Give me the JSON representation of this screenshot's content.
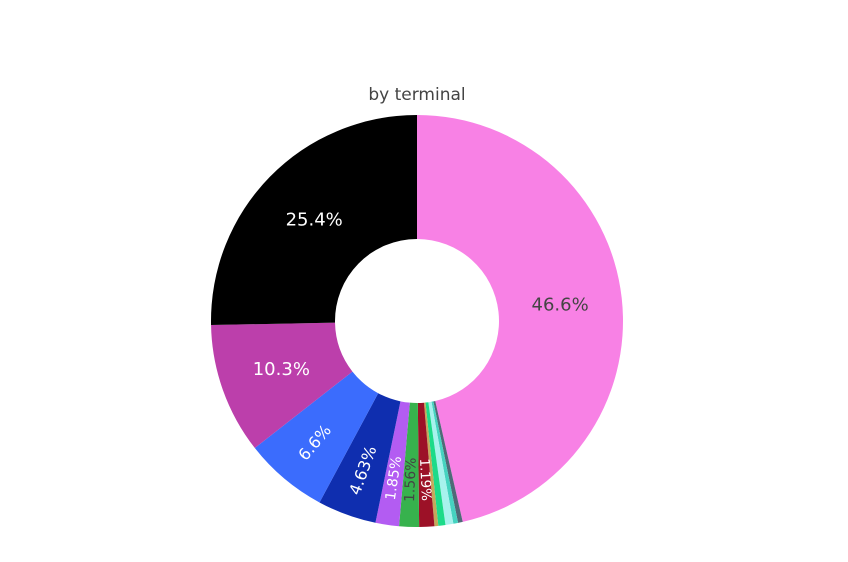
{
  "chart_data": {
    "type": "pie",
    "hole": true,
    "title": "by terminal",
    "slices": [
      {
        "label": "46.6%",
        "value": 46.6,
        "color": "#f881e5",
        "text_color": "#444444",
        "show_label": true
      },
      {
        "label": "0.37%",
        "value": 0.37,
        "color": "#4f6a78",
        "text_color": "#444444",
        "show_label": false
      },
      {
        "label": "0.37%",
        "value": 0.37,
        "color": "#45d3c0",
        "text_color": "#444444",
        "show_label": false
      },
      {
        "label": "0.62%",
        "value": 0.62,
        "color": "#a7f2ed",
        "text_color": "#444444",
        "show_label": false
      },
      {
        "label": "0.56%",
        "value": 0.56,
        "color": "#1cdb89",
        "text_color": "#444444",
        "show_label": false
      },
      {
        "label": "0.3%",
        "value": 0.3,
        "color": "#c4a95b",
        "text_color": "#444444",
        "show_label": false
      },
      {
        "label": "1.19%",
        "value": 1.19,
        "color": "#9c1127",
        "text_color": "#ffffff",
        "show_label": true
      },
      {
        "label": "1.56%",
        "value": 1.56,
        "color": "#37b24d",
        "text_color": "#444444",
        "show_label": true
      },
      {
        "label": "1.85%",
        "value": 1.85,
        "color": "#b35cf2",
        "text_color": "#ffffff",
        "show_label": true
      },
      {
        "label": "4.63%",
        "value": 4.63,
        "color": "#0f2eaf",
        "text_color": "#ffffff",
        "show_label": true
      },
      {
        "label": "6.6%",
        "value": 6.6,
        "color": "#3b6cfd",
        "text_color": "#ffffff",
        "show_label": true
      },
      {
        "label": "10.3%",
        "value": 10.3,
        "color": "#bc3fab",
        "text_color": "#ffffff",
        "show_label": true
      },
      {
        "label": "25.4%",
        "value": 25.4,
        "color": "#000000",
        "text_color": "#ffffff",
        "show_label": true
      }
    ]
  }
}
